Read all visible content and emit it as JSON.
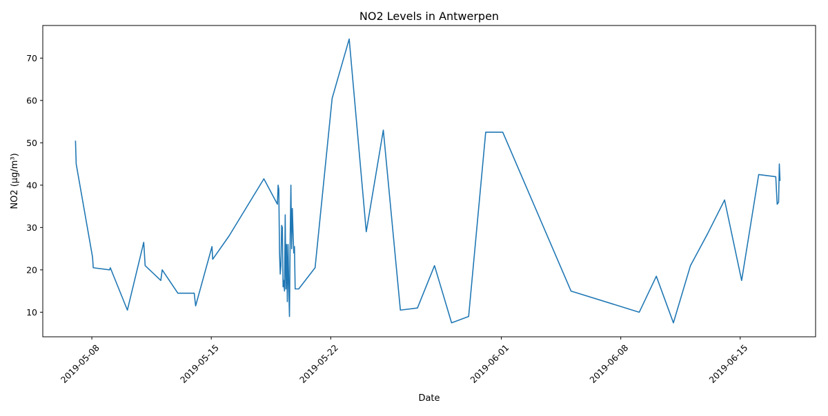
{
  "chart_data": {
    "type": "line",
    "title": "NO2 Levels in Antwerpen",
    "xlabel": "Date",
    "ylabel": "NO2 (µg/m³)",
    "x_tick_labels": [
      "2019-05-08",
      "2019-05-15",
      "2019-05-22",
      "2019-06-01",
      "2019-06-08",
      "2019-06-15"
    ],
    "y_tick_labels": [
      "10",
      "20",
      "30",
      "40",
      "50",
      "60",
      "70"
    ],
    "y_ticks": [
      10,
      20,
      30,
      40,
      50,
      60,
      70
    ],
    "xlim": [
      "2019-05-05 03:00",
      "2019-06-19 10:00"
    ],
    "ylim": [
      4.2,
      77.7
    ],
    "grid": false,
    "legend": "none",
    "series_color": "#1f77b4",
    "series": [
      {
        "x": [
          "2019-05-07 01:00",
          "2019-05-07 02:00",
          "2019-05-08 01:00",
          "2019-05-08 02:00",
          "2019-05-09 01:00",
          "2019-05-09 02:00",
          "2019-05-10 02:00",
          "2019-05-11 01:00",
          "2019-05-11 03:00",
          "2019-05-12 01:00",
          "2019-05-12 03:00",
          "2019-05-13 01:00",
          "2019-05-14 00:00",
          "2019-05-14 02:00",
          "2019-05-15 01:00",
          "2019-05-15 02:00",
          "2019-05-16 01:00",
          "2019-05-18 02:00",
          "2019-05-18 21:00",
          "2019-05-18 22:00",
          "2019-05-18 23:00",
          "2019-05-19 00:00",
          "2019-05-19 01:00",
          "2019-05-19 02:00",
          "2019-05-19 03:00",
          "2019-05-19 04:00",
          "2019-05-19 05:00",
          "2019-05-19 06:00",
          "2019-05-19 07:00",
          "2019-05-19 08:00",
          "2019-05-19 09:00",
          "2019-05-19 10:00",
          "2019-05-19 11:00",
          "2019-05-19 12:00",
          "2019-05-19 13:00",
          "2019-05-19 14:00",
          "2019-05-19 15:00",
          "2019-05-19 16:00",
          "2019-05-19 17:00",
          "2019-05-19 18:00",
          "2019-05-19 19:00",
          "2019-05-19 20:00",
          "2019-05-19 21:00",
          "2019-05-19 22:00",
          "2019-05-19 23:00",
          "2019-05-20 00:00",
          "2019-05-20 01:00",
          "2019-05-20 02:00",
          "2019-05-20 03:00",
          "2019-05-21 02:00",
          "2019-05-22 02:00",
          "2019-05-23 02:00",
          "2019-05-24 02:00",
          "2019-05-25 02:00",
          "2019-05-26 02:00",
          "2019-05-27 02:00",
          "2019-05-28 02:00",
          "2019-05-29 02:00",
          "2019-05-30 02:00",
          "2019-05-31 02:00",
          "2019-06-01 02:00",
          "2019-06-05 02:00",
          "2019-06-09 02:00",
          "2019-06-10 02:00",
          "2019-06-11 02:00",
          "2019-06-12 02:00",
          "2019-06-13 02:00",
          "2019-06-14 02:00",
          "2019-06-15 02:00",
          "2019-06-16 02:00",
          "2019-06-17 02:00",
          "2019-06-17 04:00",
          "2019-06-17 06:00",
          "2019-06-17 07:00",
          "2019-06-17 08:00"
        ],
        "y": [
          50.5,
          45.0,
          23.0,
          20.5,
          20.0,
          20.5,
          10.5,
          26.5,
          21.0,
          17.5,
          20.0,
          14.5,
          14.5,
          11.5,
          25.5,
          22.5,
          28.0,
          41.5,
          35.5,
          40.0,
          39.0,
          24.0,
          19.0,
          21.0,
          30.5,
          30.0,
          16.0,
          17.5,
          15.0,
          33.0,
          15.5,
          26.0,
          12.5,
          26.0,
          16.0,
          9.0,
          28.0,
          40.0,
          25.0,
          34.5,
          29.0,
          24.0,
          25.5,
          15.5,
          15.5,
          15.5,
          15.5,
          15.5,
          15.5,
          20.5,
          60.5,
          74.5,
          29.0,
          53.0,
          10.5,
          11.0,
          21.0,
          7.5,
          9.0,
          52.5,
          52.5,
          15.0,
          10.0,
          18.5,
          7.5,
          21.0,
          28.5,
          36.5,
          17.5,
          42.5,
          42.0,
          35.5,
          36.0,
          45.0,
          41.0
        ]
      }
    ]
  }
}
